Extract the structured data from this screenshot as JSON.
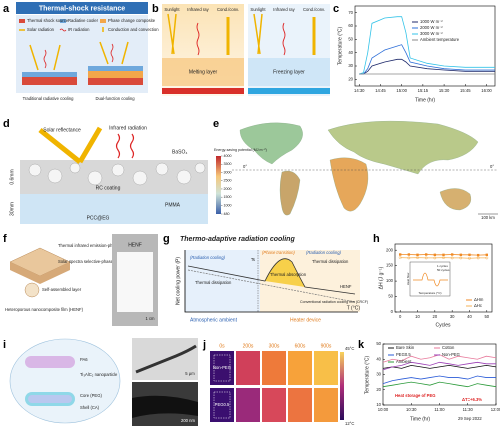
{
  "panels": {
    "a": {
      "letter": "a",
      "title": "Thermal-shock resistance",
      "legend": [
        "Thermal shock source",
        "Radiative cooler",
        "Phase change composite",
        "Solar radiation",
        "IR radiation",
        "Conduction and convection"
      ],
      "captions": [
        "Traditional radiative cooling",
        "Dual-function cooling"
      ]
    },
    "b": {
      "letter": "b",
      "labels": [
        "Sunlight",
        "Infrared ray",
        "Cond./conv."
      ],
      "layers": [
        "Melting layer",
        "Freezing layer"
      ]
    },
    "d": {
      "letter": "d",
      "labels": [
        "Solar reflectance",
        "Infrared radiation",
        "BaSO₄",
        "RC coating",
        "PMMA",
        "PCC@EG",
        "0.6mm",
        "30mm"
      ]
    },
    "e": {
      "letter": "e",
      "colorbar": {
        "label": "Energy-saving potential (MJ m⁻²)",
        "lim": [
          480,
          4000
        ],
        "ticks": [
          4000,
          3500,
          3000,
          2500,
          2000,
          1500,
          1000,
          480
        ]
      },
      "equator": "0°",
      "scale": "100 km"
    },
    "f": {
      "letter": "f",
      "labels": [
        "Thermal infrared emission-phase (TIEP)",
        "Solar spectra selective-phase (SSP)",
        "Self-assembled layer",
        "Heteroporous nanocomposite film (HENF)"
      ],
      "photo": [
        "HENF",
        "1 cm"
      ]
    },
    "g": {
      "letter": "g",
      "title": "Thermo-adaptive radiation cooling",
      "y_label": "Net cooling power (P)",
      "x_label": "T (°C)",
      "labels": [
        "(Radiation cooling)",
        "Thermal dissipation",
        "(Phase transition)",
        "Thermal absorption",
        "(Radiation cooling)",
        "Thermal dissipation",
        "HENF",
        "Conventional radiation cooling film (CRCF)",
        "Ts"
      ],
      "zones": [
        "Atmospheric ambient",
        "Heater device"
      ]
    },
    "i": {
      "letter": "i",
      "labels": [
        "PA6",
        "Ti₃AlC₂ nanoparticle",
        "Core (PEG)",
        "Shell (CA)"
      ],
      "scales": [
        "5 μm",
        "200 nm"
      ]
    },
    "j": {
      "letter": "j",
      "times": [
        "0s",
        "200s",
        "300s",
        "600s",
        "900s"
      ],
      "rows": [
        "Non-PEG",
        "PEG0.5"
      ],
      "range": [
        "45°C",
        "12°C"
      ]
    }
  },
  "chart_data": [
    {
      "panel": "c",
      "type": "line",
      "x_label": "Time (hr)",
      "y_label": "Temperature (°C)",
      "xlim": [
        14.45,
        16.1
      ],
      "xticks": [
        {
          "value": 14.5,
          "label": "14:30"
        },
        {
          "value": 14.75,
          "label": "14:45"
        },
        {
          "value": 15,
          "label": "15:00"
        },
        {
          "value": 15.25,
          "label": "15:15"
        },
        {
          "value": 15.5,
          "label": "15:30"
        },
        {
          "value": 15.75,
          "label": "15:45"
        },
        {
          "value": 16,
          "label": "16:00"
        }
      ],
      "ylim": [
        15,
        75
      ],
      "yticks": [
        20,
        30,
        40,
        50,
        60,
        70
      ],
      "x": [
        14.5,
        14.55,
        14.6,
        14.65,
        14.8,
        14.95,
        15.0,
        15.05,
        15.1,
        15.3,
        15.5,
        15.75,
        16.0,
        16.1
      ],
      "series": [
        {
          "name": "1000 W m⁻²",
          "color": "#1f2a6b",
          "values": [
            24,
            24,
            26,
            30,
            33,
            35,
            35,
            33,
            30,
            28,
            27,
            26,
            26,
            26
          ]
        },
        {
          "name": "2000 W m⁻²",
          "color": "#2e6fd8",
          "values": [
            24,
            24,
            28,
            36,
            42,
            45,
            46,
            40,
            33,
            30,
            28,
            27,
            27,
            27
          ]
        },
        {
          "name": "3000 W m⁻²",
          "color": "#33c3e8",
          "values": [
            24,
            25,
            40,
            62,
            66,
            67,
            67,
            55,
            36,
            32,
            30,
            29,
            29,
            29
          ]
        },
        {
          "name": "Ambient temperature",
          "color": "#888888",
          "values": [
            24,
            24,
            24,
            24,
            24,
            24,
            24,
            24,
            24,
            24,
            24,
            24,
            24,
            24
          ]
        }
      ]
    },
    {
      "panel": "h",
      "type": "line",
      "markers": true,
      "x_label": "Cycles",
      "y_label": "ΔH (J g⁻¹)",
      "xlim": [
        -3,
        53
      ],
      "xticks": [
        0,
        10,
        20,
        30,
        40,
        50
      ],
      "ylim": [
        0,
        220
      ],
      "yticks": [
        0,
        50,
        100,
        150,
        200
      ],
      "x": [
        0,
        5,
        10,
        15,
        20,
        25,
        30,
        35,
        40,
        45,
        50
      ],
      "series": [
        {
          "name": "ΔHm",
          "color": "#f08a24",
          "marker": "square",
          "values": [
            186,
            186,
            185,
            186,
            185,
            185,
            186,
            185,
            185,
            184,
            185
          ]
        },
        {
          "name": "ΔHc",
          "color": "#f5b35a",
          "marker": "circle",
          "values": [
            176,
            175,
            176,
            175,
            175,
            176,
            175,
            175,
            174,
            175,
            175
          ]
        }
      ],
      "inset": [
        "Heat flow",
        "Temperature (°C)",
        "1 cycles",
        "50 cycles"
      ]
    },
    {
      "panel": "k",
      "type": "line",
      "x_label": "Time (hr)",
      "date": "29 Sep 2022",
      "y_label": "Temperature (°C)",
      "xlim": [
        10,
        12
      ],
      "xticks": [
        {
          "value": 10,
          "label": "10:00"
        },
        {
          "value": 10.5,
          "label": "10:30"
        },
        {
          "value": 11,
          "label": "11:00"
        },
        {
          "value": 11.5,
          "label": "11:30"
        },
        {
          "value": 12,
          "label": "12:00"
        }
      ],
      "ylim": [
        10,
        50
      ],
      "yticks": [
        10,
        20,
        30,
        40,
        50
      ],
      "x": [
        10,
        10.17,
        10.33,
        10.5,
        10.67,
        10.83,
        11,
        11.17,
        11.33,
        11.5,
        11.67,
        11.83,
        12
      ],
      "series": [
        {
          "name": "Bare Skin",
          "color": "#111111",
          "values": [
            34,
            35,
            34,
            36,
            35,
            34,
            35,
            36,
            35,
            34,
            35,
            36,
            35
          ]
        },
        {
          "name": "Cotton",
          "color": "#e8799b",
          "values": [
            38,
            40,
            39,
            42,
            40,
            41,
            43,
            40,
            42,
            41,
            40,
            42,
            41
          ]
        },
        {
          "name": "PEG0.5",
          "color": "#2a5bd7",
          "values": [
            24,
            26,
            27,
            28,
            27,
            28,
            29,
            28,
            28,
            27,
            29,
            28,
            28
          ]
        },
        {
          "name": "Non-PEG",
          "color": "#9b3fb5",
          "values": [
            33,
            35,
            36,
            38,
            37,
            36,
            38,
            37,
            36,
            37,
            38,
            37,
            37
          ]
        },
        {
          "name": "Ambient",
          "color": "#2b9a3a",
          "values": [
            22,
            23,
            24,
            25,
            24,
            23,
            25,
            24,
            23,
            22,
            24,
            23,
            22
          ]
        }
      ],
      "annotations": [
        "Heat storage of PEG",
        "ΔT=+6.3%"
      ]
    }
  ]
}
